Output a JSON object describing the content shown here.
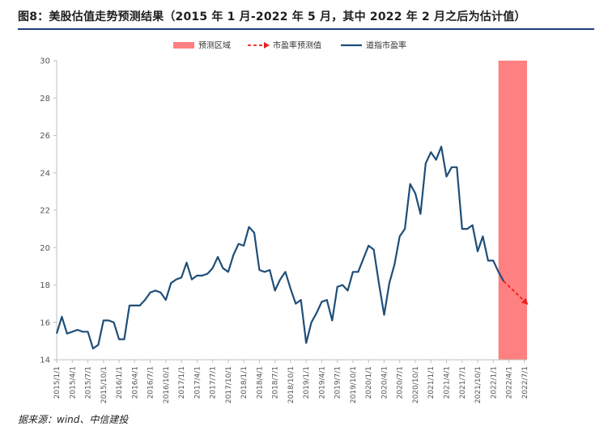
{
  "title": "图8：美股估值走势预测结果（2015 年 1 月-2022 年 5 月，其中 2022 年 2 月之后为估计值）",
  "source": "据来源：wind、中信建投",
  "colors": {
    "forecast_region": "#ff8080",
    "forecast_line": "#ee1c1c",
    "pe_line": "#1f4e79",
    "rule": "#1f3d7a"
  },
  "chart_data": {
    "type": "line",
    "legend": [
      {
        "name": "预测区域",
        "kind": "region"
      },
      {
        "name": "市盈率预测值",
        "kind": "dashed-arrow"
      },
      {
        "name": "道指市盈率",
        "kind": "line"
      }
    ],
    "legend_position": "top-center",
    "ylim": [
      14,
      30
    ],
    "yticks": [
      14,
      16,
      18,
      20,
      22,
      24,
      26,
      28,
      30
    ],
    "x_tick_labels": [
      "2015/1/1",
      "2015/4/1",
      "2015/7/1",
      "2015/10/1",
      "2016/1/1",
      "2016/4/1",
      "2016/7/1",
      "2016/10/1",
      "2017/1/1",
      "2017/4/1",
      "2017/7/1",
      "2017/10/1",
      "2018/1/1",
      "2018/4/1",
      "2018/7/1",
      "2018/10/1",
      "2019/1/1",
      "2019/4/1",
      "2019/7/1",
      "2019/10/1",
      "2020/1/1",
      "2020/4/1",
      "2020/7/1",
      "2020/10/1",
      "2021/1/1",
      "2021/4/1",
      "2021/7/1",
      "2021/10/1",
      "2022/1/1",
      "2022/4/1",
      "2022/7/1"
    ],
    "grid": false,
    "forecast_region": {
      "from_month": 85,
      "to_month": 90.5
    },
    "series": [
      {
        "name": "道指市盈率",
        "values": [
          15.4,
          16.3,
          15.4,
          15.5,
          15.6,
          15.5,
          15.5,
          14.6,
          14.8,
          16.1,
          16.1,
          16.0,
          15.1,
          15.1,
          16.9,
          16.9,
          16.9,
          17.2,
          17.6,
          17.7,
          17.6,
          17.2,
          18.1,
          18.3,
          18.4,
          19.2,
          18.3,
          18.5,
          18.5,
          18.6,
          18.9,
          19.5,
          18.9,
          18.7,
          19.6,
          20.2,
          20.1,
          21.1,
          20.8,
          18.8,
          18.7,
          18.8,
          17.7,
          18.3,
          18.7,
          17.8,
          17.0,
          17.2,
          14.9,
          16.0,
          16.5,
          17.1,
          17.2,
          16.1,
          17.9,
          18.0,
          17.7,
          18.7,
          18.7,
          19.4,
          20.1,
          19.9,
          18.1,
          16.4,
          18.1,
          19.1,
          20.6,
          21.0,
          23.4,
          22.9,
          21.8,
          24.5,
          25.1,
          24.7,
          25.4,
          23.8,
          24.3,
          24.3,
          21.0,
          21.0,
          21.2,
          19.8,
          20.6,
          19.3,
          19.3,
          18.7,
          18.2
        ]
      },
      {
        "name": "市盈率预测值",
        "points": [
          [
            86,
            18.2
          ],
          [
            90.5,
            17.0
          ]
        ]
      }
    ]
  }
}
